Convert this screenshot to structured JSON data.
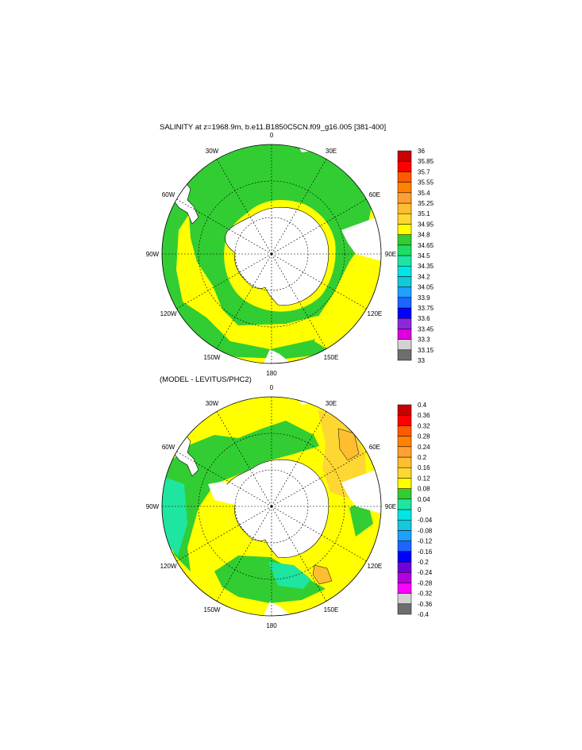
{
  "figures": [
    {
      "title": "SALINITY at z=1968.9m, b.e11.B1850C5CN.f09_g16.005 [381-400]",
      "meridian_labels": [
        {
          "lon": 0,
          "text": "0"
        },
        {
          "lon": 30,
          "text": "30E"
        },
        {
          "lon": 60,
          "text": "60E"
        },
        {
          "lon": 90,
          "text": "90E"
        },
        {
          "lon": 120,
          "text": "120E"
        },
        {
          "lon": 150,
          "text": "150E"
        },
        {
          "lon": 180,
          "text": "180"
        },
        {
          "lon": -150,
          "text": "150W"
        },
        {
          "lon": -120,
          "text": "120W"
        },
        {
          "lon": -90,
          "text": "90W"
        },
        {
          "lon": -60,
          "text": "60W"
        },
        {
          "lon": -30,
          "text": "30W"
        }
      ],
      "colorbar": {
        "colors": [
          "#6e6e6e",
          "#d2d2d2",
          "#dc00dc",
          "#8c28dc",
          "#0000ff",
          "#1e64ff",
          "#1ea0ff",
          "#14c8dc",
          "#00e6e6",
          "#1ee6a0",
          "#1edc64",
          "#32cd32",
          "#ffff00",
          "#ffd732",
          "#ffbe32",
          "#ffa032",
          "#ff8200",
          "#ff5a00",
          "#ff0000",
          "#c80000"
        ],
        "labels": [
          "33",
          "33.15",
          "33.3",
          "33.45",
          "33.6",
          "33.75",
          "33.9",
          "34.05",
          "34.2",
          "34.35",
          "34.5",
          "34.65",
          "34.8",
          "34.95",
          "35.1",
          "35.25",
          "35.4",
          "35.55",
          "35.7",
          "35.85",
          "36"
        ]
      }
    },
    {
      "title": "(MODEL - LEVITUS/PHC2)",
      "meridian_labels": [
        {
          "lon": 0,
          "text": "0"
        },
        {
          "lon": 30,
          "text": "30E"
        },
        {
          "lon": 60,
          "text": "60E"
        },
        {
          "lon": 90,
          "text": "90E"
        },
        {
          "lon": 120,
          "text": "120E"
        },
        {
          "lon": 150,
          "text": "150E"
        },
        {
          "lon": 180,
          "text": "180"
        },
        {
          "lon": -150,
          "text": "150W"
        },
        {
          "lon": -120,
          "text": "120W"
        },
        {
          "lon": -90,
          "text": "90W"
        },
        {
          "lon": -60,
          "text": "60W"
        },
        {
          "lon": -30,
          "text": "30W"
        }
      ],
      "colorbar": {
        "colors": [
          "#6e6e6e",
          "#d2d2d2",
          "#ff00ff",
          "#b400dc",
          "#6e00dc",
          "#0000ff",
          "#1e64ff",
          "#1ea0ff",
          "#14c8dc",
          "#00e6e6",
          "#1ee6a0",
          "#32cd32",
          "#ffff00",
          "#ffd732",
          "#ffbe32",
          "#ffa032",
          "#ff8200",
          "#ff5a00",
          "#ff0000",
          "#c80000"
        ],
        "labels": [
          "-0.4",
          "-0.36",
          "-0.32",
          "-0.28",
          "-0.24",
          "-0.2",
          "-0.16",
          "-0.12",
          "-0.08",
          "-0.04",
          "0",
          "0.04",
          "0.08",
          "0.12",
          "0.16",
          "0.2",
          "0.24",
          "0.28",
          "0.32",
          "0.36",
          "0.4"
        ]
      }
    }
  ],
  "colors": {
    "land": "#ffffff",
    "green": "#32cd32",
    "yellow": "#ffff00",
    "gold": "#ffd732",
    "orange": "#ffbe32",
    "teal": "#1ee6a0",
    "seafoam": "#1edc64",
    "cyan": "#00e6e6"
  }
}
